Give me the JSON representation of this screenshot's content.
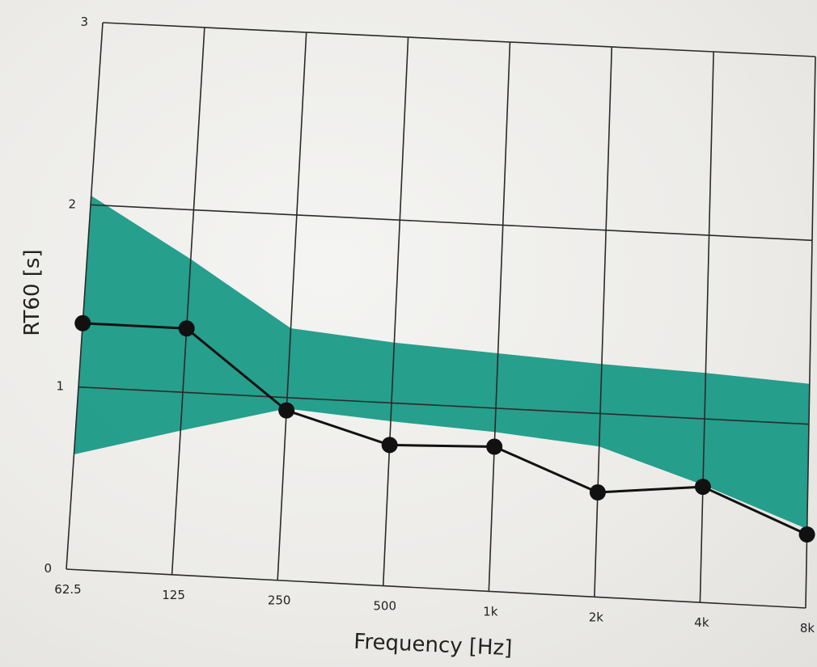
{
  "chart_data": {
    "type": "line",
    "x_categories": [
      "62.5",
      "125",
      "250",
      "500",
      "1k",
      "2k",
      "4k",
      "8k"
    ],
    "y_ticks": [
      "0",
      "1",
      "2",
      "3"
    ],
    "ylim": [
      0,
      3
    ],
    "xlabel": "Frequency [Hz]",
    "ylabel": "RT60 [s]",
    "grid": true,
    "band": {
      "upper": [
        2.05,
        1.73,
        1.38,
        1.33,
        1.3,
        1.27,
        1.25,
        1.22
      ],
      "lower": [
        0.63,
        0.79,
        0.94,
        0.9,
        0.87,
        0.82,
        0.64,
        0.43
      ],
      "color": "#1a9a87"
    },
    "series": [
      {
        "values": [
          1.35,
          1.35,
          0.93,
          0.77,
          0.79,
          0.57,
          0.63,
          0.4
        ],
        "color": "#111111"
      }
    ]
  }
}
